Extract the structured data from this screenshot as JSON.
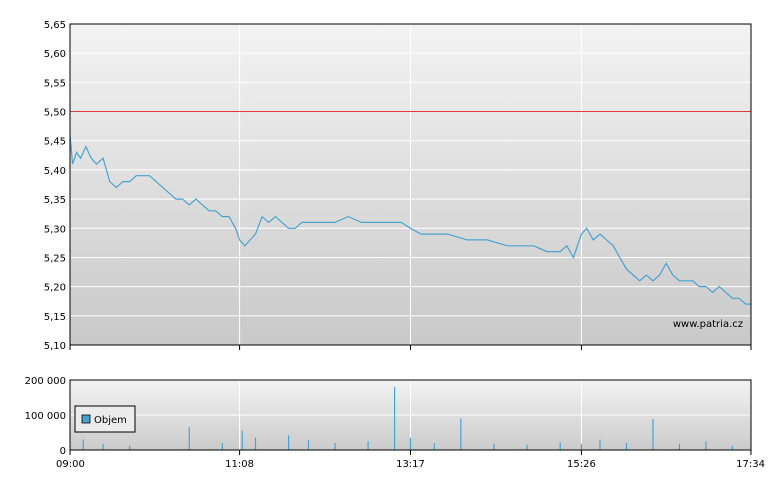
{
  "watermark": "www.patria.cz",
  "chart_data": [
    {
      "type": "line",
      "title": "",
      "xlabel": "",
      "ylabel": "",
      "ylim": [
        5.1,
        5.65
      ],
      "y_ticks": [
        "5,10",
        "5,15",
        "5,20",
        "5,25",
        "5,30",
        "5,35",
        "5,40",
        "5,45",
        "5,50",
        "5,55",
        "5,60",
        "5,65"
      ],
      "x_ticks": [
        "09:00",
        "11:08",
        "13:17",
        "15:26",
        "17:34"
      ],
      "grid": true,
      "reference_line": {
        "value": 5.5,
        "color": "#e03a3a"
      },
      "line_color": "#4aa3cf",
      "series": [
        {
          "x": [
            "09:00",
            "09:02",
            "09:05",
            "09:08",
            "09:12",
            "09:16",
            "09:20",
            "09:25",
            "09:30",
            "09:35",
            "09:40",
            "09:45",
            "09:50",
            "09:55",
            "10:00",
            "10:05",
            "10:10",
            "10:15",
            "10:20",
            "10:25",
            "10:30",
            "10:35",
            "10:40",
            "10:45",
            "10:50",
            "10:55",
            "11:00",
            "11:05",
            "11:08",
            "11:12",
            "11:16",
            "11:20",
            "11:25",
            "11:30",
            "11:35",
            "11:40",
            "11:45",
            "11:50",
            "11:55",
            "12:00",
            "12:10",
            "12:20",
            "12:30",
            "12:40",
            "12:50",
            "13:00",
            "13:10",
            "13:17",
            "13:25",
            "13:35",
            "13:45",
            "14:00",
            "14:15",
            "14:30",
            "14:40",
            "14:45",
            "14:50",
            "15:00",
            "15:10",
            "15:15",
            "15:20",
            "15:26",
            "15:30",
            "15:35",
            "15:40",
            "15:45",
            "15:50",
            "15:55",
            "16:00",
            "16:05",
            "16:10",
            "16:15",
            "16:20",
            "16:25",
            "16:30",
            "16:35",
            "16:40",
            "16:45",
            "16:50",
            "16:55",
            "17:00",
            "17:05",
            "17:10",
            "17:15",
            "17:20",
            "17:25",
            "17:30",
            "17:34"
          ],
          "values": [
            5.46,
            5.41,
            5.43,
            5.42,
            5.44,
            5.42,
            5.41,
            5.42,
            5.38,
            5.37,
            5.38,
            5.38,
            5.39,
            5.39,
            5.39,
            5.38,
            5.37,
            5.36,
            5.35,
            5.35,
            5.34,
            5.35,
            5.34,
            5.33,
            5.33,
            5.32,
            5.32,
            5.3,
            5.28,
            5.27,
            5.28,
            5.29,
            5.32,
            5.31,
            5.32,
            5.31,
            5.3,
            5.3,
            5.31,
            5.31,
            5.31,
            5.31,
            5.32,
            5.31,
            5.31,
            5.31,
            5.31,
            5.3,
            5.29,
            5.29,
            5.29,
            5.28,
            5.28,
            5.27,
            5.27,
            5.27,
            5.27,
            5.26,
            5.26,
            5.27,
            5.25,
            5.29,
            5.3,
            5.28,
            5.29,
            5.28,
            5.27,
            5.25,
            5.23,
            5.22,
            5.21,
            5.22,
            5.21,
            5.22,
            5.24,
            5.22,
            5.21,
            5.21,
            5.21,
            5.2,
            5.2,
            5.19,
            5.2,
            5.19,
            5.18,
            5.18,
            5.17,
            5.17
          ]
        }
      ]
    },
    {
      "type": "bar",
      "title": "",
      "xlabel": "",
      "ylabel": "",
      "ylim": [
        0,
        200000
      ],
      "y_ticks": [
        "0",
        "100 000",
        "200 000"
      ],
      "x_ticks": [
        "09:00",
        "11:08",
        "13:17",
        "15:26",
        "17:34"
      ],
      "grid": true,
      "legend": {
        "position": "left",
        "entries": [
          "Objem"
        ]
      },
      "bar_color": "#4aa3cf",
      "series": [
        {
          "name": "Objem",
          "x": [
            "09:10",
            "09:25",
            "09:45",
            "10:30",
            "10:55",
            "11:10",
            "11:20",
            "11:45",
            "12:00",
            "12:20",
            "12:45",
            "13:05",
            "13:17",
            "13:35",
            "13:55",
            "14:20",
            "14:45",
            "15:10",
            "15:26",
            "15:40",
            "16:00",
            "16:20",
            "16:40",
            "17:00",
            "17:20"
          ],
          "values": [
            30000,
            18000,
            12000,
            65000,
            20000,
            55000,
            35000,
            42000,
            28000,
            20000,
            25000,
            180000,
            35000,
            20000,
            90000,
            18000,
            15000,
            22000,
            18000,
            30000,
            20000,
            88000,
            18000,
            25000,
            12000
          ]
        }
      ]
    }
  ]
}
